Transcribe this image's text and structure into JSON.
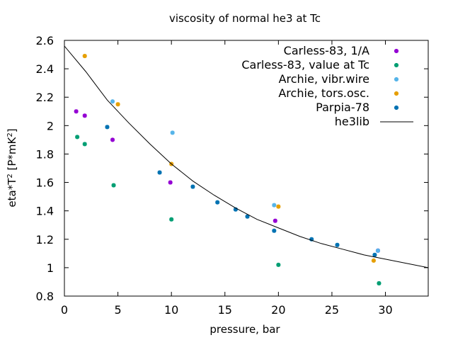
{
  "chart_data": {
    "type": "scatter",
    "title": "viscosity of normal he3 at Tc",
    "xlabel": "pressure, bar",
    "ylabel": {
      "base": "eta*T",
      "sup1": "2",
      "mid": " [P*mK",
      "sup2": "2",
      "end": "]"
    },
    "xlim": [
      0,
      34
    ],
    "ylim": [
      0.8,
      2.6
    ],
    "xticks": [
      0,
      5,
      10,
      15,
      20,
      25,
      30
    ],
    "yticks": [
      0.8,
      1,
      1.2,
      1.4,
      1.6,
      1.8,
      2,
      2.2,
      2.4,
      2.6
    ],
    "xtick_labels": [
      "0",
      "5",
      "10",
      "15",
      "20",
      "25",
      "30"
    ],
    "ytick_labels": [
      "0.8",
      "1",
      "1.2",
      "1.4",
      "1.6",
      "1.8",
      "2",
      "2.2",
      "2.4",
      "2.6"
    ],
    "grid": false,
    "legend_position": "top-right",
    "series": [
      {
        "name": "Carless-83, 1/A",
        "color": "#9400d3",
        "marker": "point",
        "points": [
          [
            1.1,
            2.1
          ],
          [
            1.9,
            2.07
          ],
          [
            4.5,
            1.9
          ],
          [
            9.9,
            1.6
          ],
          [
            19.7,
            1.33
          ],
          [
            29.3,
            1.12
          ]
        ]
      },
      {
        "name": "Carless-83, value at Tc",
        "color": "#009e73",
        "marker": "point",
        "points": [
          [
            1.2,
            1.92
          ],
          [
            1.9,
            1.87
          ],
          [
            4.6,
            1.58
          ],
          [
            10.0,
            1.34
          ],
          [
            20.0,
            1.02
          ],
          [
            29.4,
            0.89
          ]
        ]
      },
      {
        "name": "Archie, vibr.wire",
        "color": "#56b4e9",
        "marker": "point",
        "points": [
          [
            4.5,
            2.17
          ],
          [
            10.1,
            1.95
          ],
          [
            19.6,
            1.44
          ],
          [
            29.3,
            1.12
          ]
        ]
      },
      {
        "name": "Archie, tors.osc.",
        "color": "#e69f00",
        "marker": "point",
        "points": [
          [
            1.9,
            2.49
          ],
          [
            5.0,
            2.15
          ],
          [
            10.0,
            1.73
          ],
          [
            20.0,
            1.43
          ],
          [
            28.9,
            1.05
          ]
        ]
      },
      {
        "name": "Parpia-78",
        "color": "#0072b2",
        "marker": "point",
        "points": [
          [
            4.0,
            1.99
          ],
          [
            8.9,
            1.67
          ],
          [
            12.0,
            1.57
          ],
          [
            14.3,
            1.46
          ],
          [
            16.0,
            1.41
          ],
          [
            17.1,
            1.36
          ],
          [
            19.6,
            1.26
          ],
          [
            23.1,
            1.2
          ],
          [
            25.5,
            1.16
          ],
          [
            29.0,
            1.09
          ]
        ]
      },
      {
        "name": "he3lib",
        "color": "#000000",
        "marker": "line",
        "points": [
          [
            0,
            2.56
          ],
          [
            2,
            2.38
          ],
          [
            4,
            2.18
          ],
          [
            6,
            2.02
          ],
          [
            8,
            1.87
          ],
          [
            10,
            1.73
          ],
          [
            12,
            1.61
          ],
          [
            14,
            1.51
          ],
          [
            16,
            1.42
          ],
          [
            18,
            1.34
          ],
          [
            20,
            1.28
          ],
          [
            22,
            1.22
          ],
          [
            24,
            1.17
          ],
          [
            26,
            1.13
          ],
          [
            28,
            1.09
          ],
          [
            30,
            1.06
          ],
          [
            32,
            1.03
          ],
          [
            34,
            1.0
          ]
        ]
      }
    ]
  }
}
